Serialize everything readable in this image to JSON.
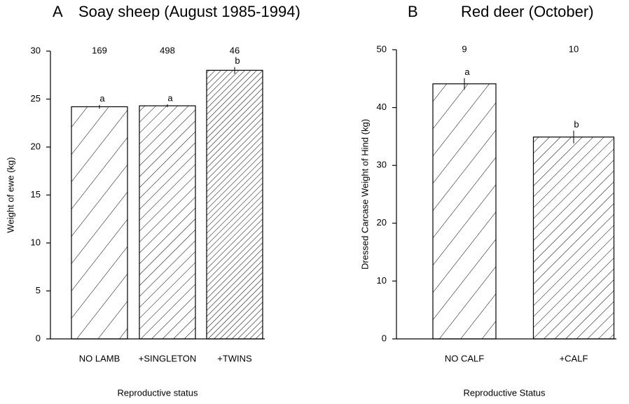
{
  "chart_data": [
    {
      "type": "bar",
      "panel_label": "A",
      "title": "Soay sheep (August 1985-1994)",
      "categories": [
        "NO LAMB",
        "+SINGLETON",
        "+TWINS"
      ],
      "values": [
        24.2,
        24.3,
        28.0
      ],
      "errors": [
        0.2,
        0.15,
        0.35
      ],
      "letters": [
        "a",
        "a",
        "b"
      ],
      "n": [
        169,
        498,
        46
      ],
      "ylabel": "Weight of ewe (kg)",
      "xlabel": "Reproductive status",
      "ylim": [
        0,
        30
      ],
      "yticks": [
        0,
        5,
        10,
        15,
        20,
        25,
        30
      ],
      "color": "#000000"
    },
    {
      "type": "bar",
      "panel_label": "B",
      "title": "Red deer (October)",
      "categories": [
        "NO CALF",
        "+CALF"
      ],
      "values": [
        44.1,
        34.9
      ],
      "errors": [
        1.0,
        1.1
      ],
      "letters": [
        "a",
        "b"
      ],
      "n": [
        9,
        10
      ],
      "ylabel": "Dressed Carcase Weight of Hind (kg)",
      "xlabel": "Reproductive Status",
      "ylim": [
        0,
        50
      ],
      "yticks": [
        0,
        10,
        20,
        30,
        40,
        50
      ],
      "color": "#000000"
    }
  ]
}
